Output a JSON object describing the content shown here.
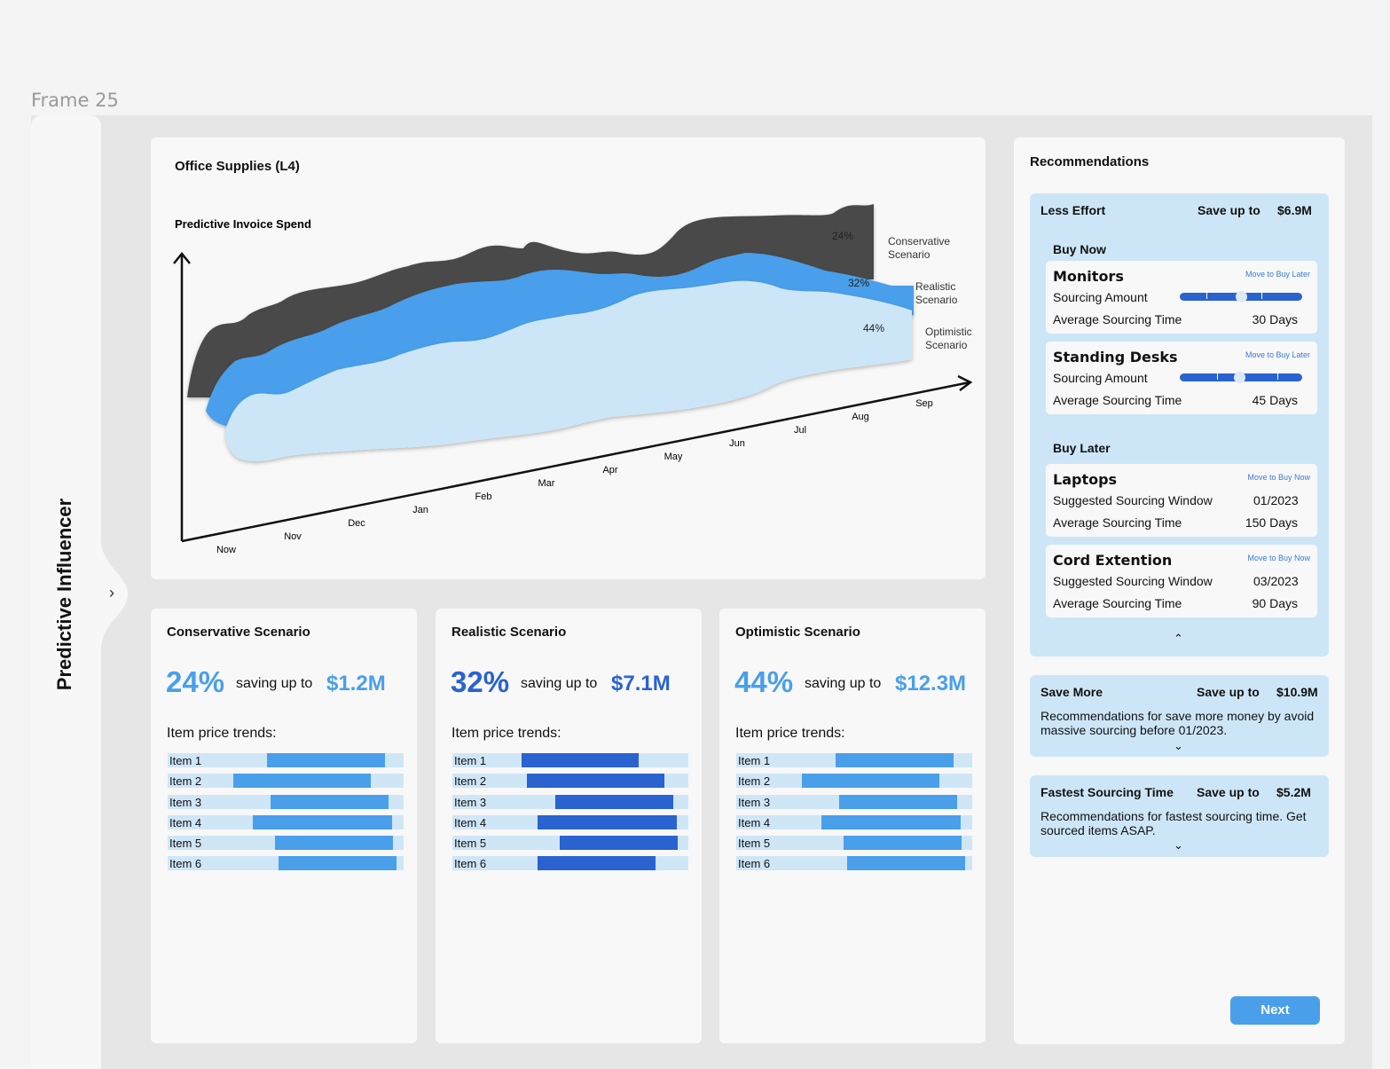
{
  "frame_label": "Frame 25",
  "sidebar": {
    "title": "Predictive Influencer",
    "toggle_glyph": "›"
  },
  "main_chart": {
    "title": "Office Supplies (L4)",
    "y_label": "Predictive Invoice Spend",
    "months": [
      "Now",
      "Nov",
      "Dec",
      "Jan",
      "Feb",
      "Mar",
      "Apr",
      "May",
      "Jun",
      "Jul",
      "Aug",
      "Sep"
    ],
    "series": [
      {
        "name_line1": "Conservative",
        "name_line2": "Scenario",
        "percent": "24%",
        "color": "#4a4a4a"
      },
      {
        "name_line1": "Realistic",
        "name_line2": "Scenario",
        "percent": "32%",
        "color": "#4a9feb"
      },
      {
        "name_line1": "Optimistic",
        "name_line2": "Scenario",
        "percent": "44%",
        "color": "#cde6f7"
      }
    ]
  },
  "scenarios": [
    {
      "title": "Conservative Scenario",
      "percent": "24%",
      "saving_text": "saving up to",
      "amount": "$1.2M",
      "trend_label": "Item price trends:",
      "accent": "#4a9feb",
      "items": [
        {
          "label": "Item 1",
          "start": 0.42,
          "end": 0.92
        },
        {
          "label": "Item 2",
          "start": 0.28,
          "end": 0.86
        },
        {
          "label": "Item 3",
          "start": 0.435,
          "end": 0.935
        },
        {
          "label": "Item 4",
          "start": 0.36,
          "end": 0.95
        },
        {
          "label": "Item 5",
          "start": 0.455,
          "end": 0.955
        },
        {
          "label": "Item 6",
          "start": 0.47,
          "end": 0.97
        }
      ]
    },
    {
      "title": "Realistic Scenario",
      "percent": "32%",
      "saving_text": "saving up to",
      "amount": "$7.1M",
      "trend_label": "Item price trends:",
      "accent": "#2a63cf",
      "items": [
        {
          "label": "Item 1",
          "start": 0.295,
          "end": 0.79
        },
        {
          "label": "Item 2",
          "start": 0.315,
          "end": 0.9
        },
        {
          "label": "Item 3",
          "start": 0.435,
          "end": 0.935
        },
        {
          "label": "Item 4",
          "start": 0.36,
          "end": 0.95
        },
        {
          "label": "Item 5",
          "start": 0.455,
          "end": 0.955
        },
        {
          "label": "Item 6",
          "start": 0.36,
          "end": 0.86
        }
      ]
    },
    {
      "title": "Optimistic Scenario",
      "percent": "44%",
      "saving_text": "saving up to",
      "amount": "$12.3M",
      "trend_label": "Item price trends:",
      "accent": "#4a9feb",
      "items": [
        {
          "label": "Item 1",
          "start": 0.42,
          "end": 0.92
        },
        {
          "label": "Item 2",
          "start": 0.28,
          "end": 0.86
        },
        {
          "label": "Item 3",
          "start": 0.435,
          "end": 0.935
        },
        {
          "label": "Item 4",
          "start": 0.36,
          "end": 0.95
        },
        {
          "label": "Item 5",
          "start": 0.455,
          "end": 0.955
        },
        {
          "label": "Item 6",
          "start": 0.47,
          "end": 0.97
        }
      ]
    }
  ],
  "recommendations": {
    "title": "Recommendations",
    "less_effort": {
      "title": "Less Effort",
      "save_label": "Save up to",
      "save_value": "$6.9M",
      "buy_now_label": "Buy Now",
      "buy_now": [
        {
          "name": "Monitors",
          "action": "Move to Buy Later",
          "row1_label": "Sourcing Amount",
          "row2_label": "Average Sourcing Time",
          "row2_value": "30 Days",
          "slider_value": 0.5
        },
        {
          "name": "Standing Desks",
          "action": "Move to Buy Later",
          "row1_label": "Sourcing Amount",
          "row2_label": "Average Sourcing Time",
          "row2_value": "45 Days",
          "slider_value": 0.49
        }
      ],
      "buy_later_label": "Buy Later",
      "buy_later": [
        {
          "name": "Laptops",
          "action": "Move to Buy Now",
          "row1_label": "Suggested Sourcing Window",
          "row1_value": "01/2023",
          "row2_label": "Average Sourcing Time",
          "row2_value": "150 Days"
        },
        {
          "name": "Cord Extention",
          "action": "Move to Buy Now",
          "row1_label": "Suggested Sourcing Window",
          "row1_value": "03/2023",
          "row2_label": "Average Sourcing Time",
          "row2_value": "90 Days"
        }
      ],
      "collapse_glyph": "⌃"
    },
    "save_more": {
      "title": "Save More",
      "save_label": "Save up to",
      "save_value": "$10.9M",
      "description": "Recommendations for save more money by avoid massive sourcing before 01/2023.",
      "expand_glyph": "⌄"
    },
    "fastest": {
      "title": "Fastest Sourcing Time",
      "save_label": "Save up to",
      "save_value": "$5.2M",
      "description": "Recommendations for fastest sourcing time. Get sourced items ASAP.",
      "expand_glyph": "⌄"
    }
  },
  "next_button": "Next"
}
